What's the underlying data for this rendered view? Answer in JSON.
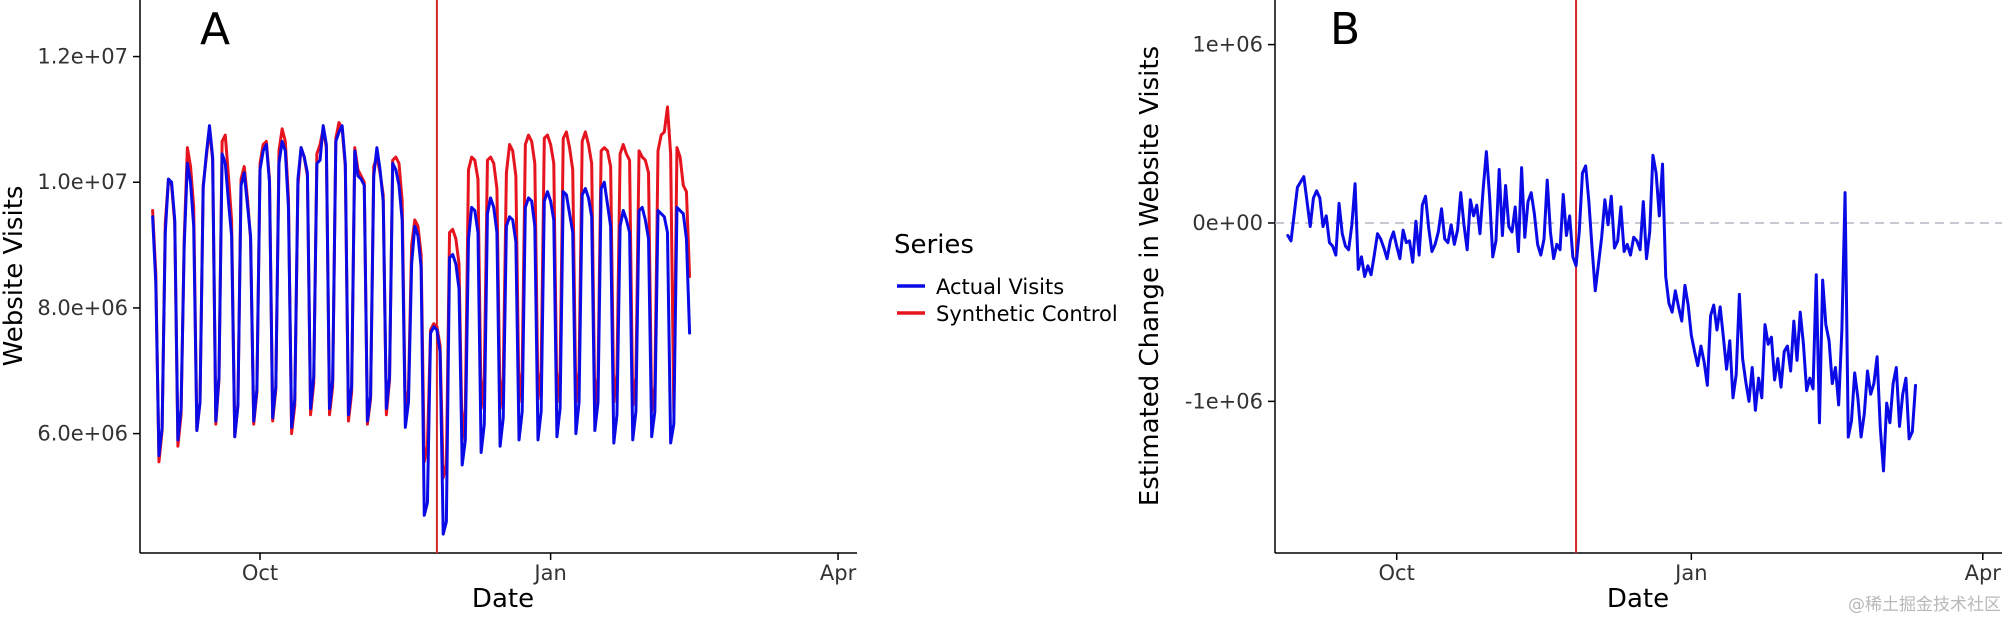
{
  "watermark": "@稀土掘金技术社区",
  "chart_data": [
    {
      "type": "line",
      "panel": "A",
      "title": "",
      "xlabel": "Date",
      "ylabel": "Website Visits",
      "x_ticks": [
        "Oct",
        "Jan",
        "Apr"
      ],
      "y_ticks": [
        "6.0e+06",
        "8.0e+06",
        "1.0e+07",
        "1.2e+07"
      ],
      "y_tick_values": [
        6000000,
        8000000,
        10000000,
        12000000
      ],
      "ylim": [
        4100000,
        12900000
      ],
      "x_range": [
        "2019-08-24",
        "2020-04-07"
      ],
      "x_tick_dates": [
        "2019-10-01",
        "2020-01-01",
        "2020-04-01"
      ],
      "intervention_date": "2019-11-26",
      "intervention_color": "#d62728",
      "grid": false,
      "legend": {
        "title": "Series",
        "placement": "right",
        "entries": [
          {
            "name": "Actual Visits",
            "color": "#0a0ae6"
          },
          {
            "name": "Synthetic Control",
            "color": "#e6141e"
          }
        ]
      },
      "x_start": "2019-08-28",
      "series": [
        {
          "name": "Actual Visits",
          "color": "#0a0ae6",
          "values": [
            9450000,
            8400000,
            5650000,
            6100000,
            9200000,
            10050000,
            10000000,
            9400000,
            5900000,
            6400000,
            9000000,
            10300000,
            10000000,
            9300000,
            6050000,
            6500000,
            9900000,
            10450000,
            10900000,
            10400000,
            6200000,
            6900000,
            10450000,
            10300000,
            9700000,
            9150000,
            5950000,
            6450000,
            9950000,
            10150000,
            9650000,
            9150000,
            6200000,
            6700000,
            10200000,
            10500000,
            10600000,
            10000000,
            6250000,
            6750000,
            10300000,
            10650000,
            10500000,
            9600000,
            6100000,
            6550000,
            10050000,
            10550000,
            10400000,
            10150000,
            6400000,
            6900000,
            10300000,
            10350000,
            10900000,
            10600000,
            6400000,
            6850000,
            10650000,
            10800000,
            10900000,
            10300000,
            6300000,
            6750000,
            10500000,
            10100000,
            10050000,
            9950000,
            6200000,
            6600000,
            10100000,
            10550000,
            10200000,
            9700000,
            6400000,
            6900000,
            10300000,
            10200000,
            9950000,
            9400000,
            6100000,
            6500000,
            8700000,
            9300000,
            9150000,
            8650000,
            4700000,
            4900000,
            7600000,
            7700000,
            7650000,
            7300000,
            4400000,
            4600000,
            8800000,
            8850000,
            8700000,
            8300000,
            5500000,
            5900000,
            9100000,
            9600000,
            9550000,
            9200000,
            5700000,
            6150000,
            9500000,
            9750000,
            9600000,
            9200000,
            5800000,
            6250000,
            9300000,
            9450000,
            9400000,
            9050000,
            5900000,
            6350000,
            9600000,
            9750000,
            9700000,
            9300000,
            5900000,
            6350000,
            9700000,
            9850000,
            9700000,
            9400000,
            5950000,
            6400000,
            9850000,
            9800000,
            9500000,
            9200000,
            6000000,
            6500000,
            9800000,
            9900000,
            9750000,
            9450000,
            6050000,
            6500000,
            9900000,
            10000000,
            9650000,
            9300000,
            5850000,
            6300000,
            9300000,
            9550000,
            9400000,
            9200000,
            5900000,
            6350000,
            9550000,
            9600000,
            9400000,
            9100000,
            5950000,
            6350000,
            9550000,
            9500000,
            9450000,
            9200000,
            5850000,
            6150000,
            9600000,
            9550000,
            9500000,
            9100000,
            7600000
          ]
        },
        {
          "name": "Synthetic Control",
          "color": "#e6141e",
          "values": [
            9550000,
            8550000,
            5550000,
            6050000,
            9350000,
            10050000,
            9950000,
            9350000,
            5800000,
            6300000,
            9100000,
            10550000,
            10250000,
            9600000,
            6050000,
            6500000,
            9950000,
            10400000,
            10850000,
            10350000,
            6150000,
            6850000,
            10650000,
            10750000,
            10100000,
            9400000,
            5950000,
            6450000,
            10050000,
            10250000,
            9750000,
            9100000,
            6150000,
            6650000,
            10300000,
            10600000,
            10650000,
            10050000,
            6200000,
            6700000,
            10500000,
            10850000,
            10650000,
            9750000,
            6000000,
            6450000,
            9950000,
            10550000,
            10400000,
            10100000,
            6300000,
            6800000,
            10450000,
            10600000,
            10850000,
            10550000,
            6300000,
            6750000,
            10700000,
            10950000,
            10850000,
            10250000,
            6200000,
            6650000,
            10550000,
            10200000,
            10100000,
            10000000,
            6150000,
            6550000,
            10250000,
            10400000,
            10150000,
            9800000,
            6300000,
            6850000,
            10350000,
            10400000,
            10300000,
            9700000,
            6300000,
            6700000,
            9000000,
            9400000,
            9300000,
            8850000,
            5550000,
            5800000,
            7650000,
            7750000,
            7700000,
            7400000,
            5300000,
            5500000,
            9200000,
            9250000,
            9100000,
            8700000,
            5900000,
            6400000,
            10200000,
            10400000,
            10350000,
            10050000,
            6400000,
            6900000,
            10350000,
            10400000,
            10300000,
            9900000,
            6400000,
            6900000,
            10150000,
            10600000,
            10500000,
            10100000,
            6500000,
            7000000,
            10600000,
            10750000,
            10650000,
            10300000,
            6550000,
            7000000,
            10700000,
            10750000,
            10600000,
            10300000,
            6500000,
            7000000,
            10700000,
            10800000,
            10550000,
            10200000,
            6500000,
            7000000,
            10650000,
            10800000,
            10600000,
            10300000,
            6400000,
            6900000,
            10500000,
            10550000,
            10500000,
            10250000,
            6500000,
            6950000,
            10450000,
            10600000,
            10450000,
            10350000,
            6450000,
            6900000,
            10500000,
            10400000,
            10350000,
            10150000,
            6350000,
            6750000,
            10500000,
            10750000,
            10800000,
            11200000,
            10450000,
            6350000,
            10550000,
            10400000,
            9950000,
            9850000,
            8500000
          ]
        }
      ]
    },
    {
      "type": "line",
      "panel": "B",
      "title": "",
      "xlabel": "Date",
      "ylabel": "Estimated Change in Website Visits",
      "x_ticks": [
        "Oct",
        "Jan",
        "Apr"
      ],
      "y_ticks": [
        "-1e+06",
        "0e+00",
        "1e+06"
      ],
      "y_tick_values": [
        -1000000,
        0,
        1000000
      ],
      "ylim": [
        -1850000,
        1250000
      ],
      "x_range": [
        "2019-08-24",
        "2020-04-07"
      ],
      "x_tick_dates": [
        "2019-10-01",
        "2020-01-01",
        "2020-04-01"
      ],
      "intervention_date": "2019-11-26",
      "intervention_color": "#d62728",
      "reference_line": {
        "y": 0,
        "style": "dashed",
        "color": "#b5b5c3"
      },
      "grid": false,
      "x_start": "2019-08-28",
      "series": [
        {
          "name": "Estimated Change",
          "color": "#0a0ae6",
          "values": [
            -70000,
            -100000,
            50000,
            200000,
            230000,
            260000,
            120000,
            -20000,
            140000,
            180000,
            140000,
            -20000,
            40000,
            -110000,
            -130000,
            -180000,
            110000,
            -60000,
            -130000,
            -150000,
            -10000,
            220000,
            -260000,
            -190000,
            -300000,
            -240000,
            -290000,
            -180000,
            -60000,
            -90000,
            -140000,
            -200000,
            -100000,
            -50000,
            -130000,
            -200000,
            -40000,
            -110000,
            -100000,
            -220000,
            10000,
            -180000,
            100000,
            150000,
            -30000,
            -160000,
            -120000,
            -50000,
            80000,
            -90000,
            -110000,
            -10000,
            -120000,
            -40000,
            170000,
            -10000,
            -150000,
            130000,
            40000,
            100000,
            -60000,
            190000,
            400000,
            150000,
            -190000,
            -100000,
            300000,
            -70000,
            210000,
            -20000,
            -50000,
            90000,
            -160000,
            310000,
            -80000,
            120000,
            170000,
            50000,
            -120000,
            -180000,
            -90000,
            240000,
            -50000,
            -200000,
            -120000,
            -150000,
            160000,
            -70000,
            40000,
            -190000,
            -240000,
            -50000,
            280000,
            320000,
            120000,
            -140000,
            -380000,
            -230000,
            -80000,
            130000,
            -10000,
            150000,
            -140000,
            -100000,
            90000,
            -160000,
            -120000,
            -180000,
            -80000,
            -100000,
            -150000,
            120000,
            -200000,
            -50000,
            380000,
            280000,
            40000,
            330000,
            -300000,
            -450000,
            -500000,
            -380000,
            -470000,
            -550000,
            -350000,
            -460000,
            -630000,
            -720000,
            -800000,
            -690000,
            -780000,
            -910000,
            -520000,
            -460000,
            -600000,
            -470000,
            -640000,
            -820000,
            -660000,
            -980000,
            -850000,
            -400000,
            -760000,
            -890000,
            -1000000,
            -810000,
            -1050000,
            -870000,
            -980000,
            -570000,
            -680000,
            -640000,
            -880000,
            -760000,
            -920000,
            -720000,
            -690000,
            -830000,
            -550000,
            -770000,
            -500000,
            -680000,
            -940000,
            -870000,
            -930000,
            -290000,
            -1120000,
            -320000,
            -570000,
            -660000,
            -900000,
            -810000,
            -1020000,
            -600000,
            170000,
            -1200000,
            -1110000,
            -840000,
            -980000,
            -1200000,
            -1070000,
            -830000,
            -960000,
            -900000,
            -750000,
            -1150000,
            -1390000,
            -1010000,
            -1120000,
            -900000,
            -810000,
            -1140000,
            -960000,
            -870000,
            -1210000,
            -1170000,
            -910000
          ]
        }
      ]
    }
  ]
}
